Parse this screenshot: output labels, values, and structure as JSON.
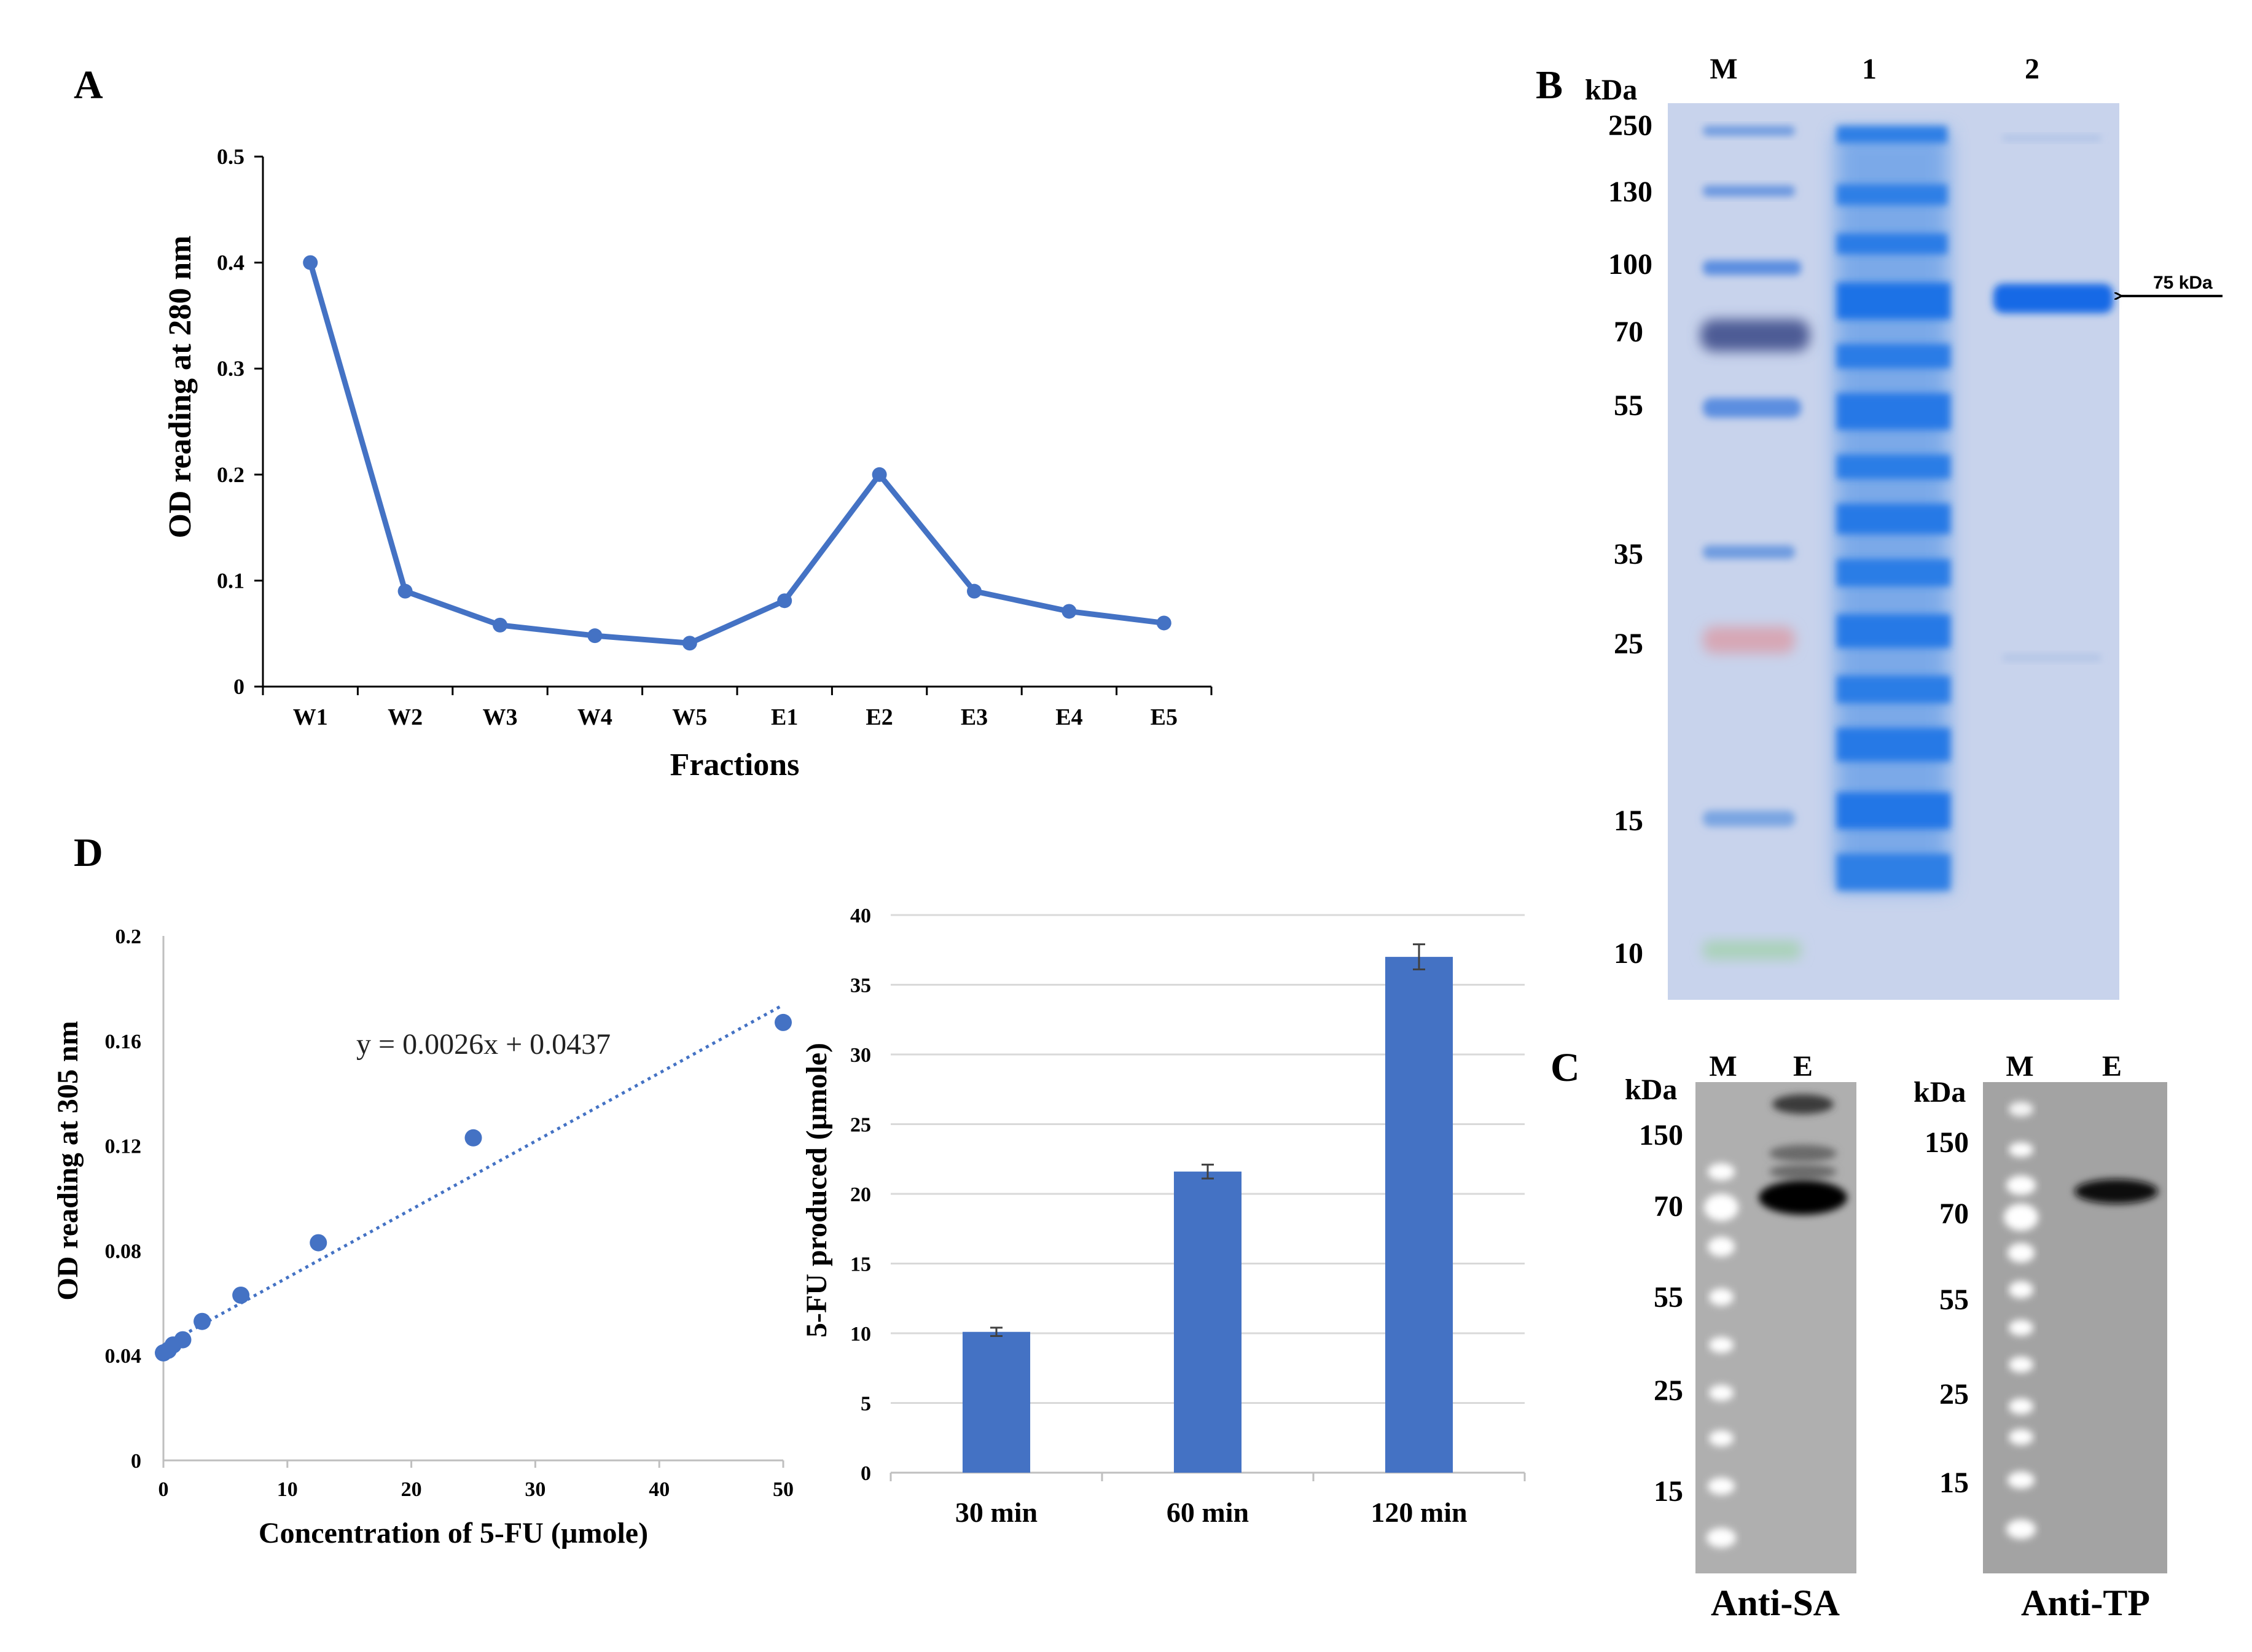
{
  "panels": {
    "A": "A",
    "B": "B",
    "C": "C",
    "D": "D"
  },
  "colors": {
    "series": "#4472C4",
    "gridline": "#D9D9D9",
    "axis": "#000000",
    "gel_bg": "#C9D3EA",
    "blot_bg": "#A8A8A8"
  },
  "chart_data": [
    {
      "id": "A",
      "type": "line",
      "xlabel": "Fractions",
      "ylabel": "OD reading at 280 nm",
      "categories": [
        "W1",
        "W2",
        "W3",
        "W4",
        "W5",
        "E1",
        "E2",
        "E3",
        "E4",
        "E5"
      ],
      "values": [
        0.4,
        0.09,
        0.058,
        0.048,
        0.041,
        0.081,
        0.2,
        0.09,
        0.071,
        0.06
      ],
      "ylim": [
        0,
        0.5
      ],
      "yticks": [
        0,
        0.1,
        0.2,
        0.3,
        0.4,
        0.5
      ],
      "ytick_labels": [
        "0",
        "0.1",
        "0.2",
        "0.3",
        "0.4",
        "0.5"
      ]
    },
    {
      "id": "D-standard",
      "type": "scatter",
      "xlabel": "Concentration of 5-FU (µmole)",
      "ylabel": "OD reading at 305 nm",
      "x": [
        0,
        0.39,
        0.78,
        1.56,
        3.125,
        6.25,
        12.5,
        25,
        50
      ],
      "y": [
        0.041,
        0.042,
        0.044,
        0.046,
        0.053,
        0.063,
        0.083,
        0.123,
        0.167
      ],
      "trendline": {
        "slope": 0.0026,
        "intercept": 0.0437,
        "equation": "y = 0.0026x + 0.0437"
      },
      "xlim": [
        0,
        50
      ],
      "ylim": [
        0,
        0.2
      ],
      "xticks": [
        0,
        10,
        20,
        30,
        40,
        50
      ],
      "xtick_labels": [
        "0",
        "10",
        "20",
        "30",
        "40",
        "50"
      ],
      "yticks": [
        0,
        0.04,
        0.08,
        0.12,
        0.16,
        0.2
      ],
      "ytick_labels": [
        "0",
        "0.04",
        "0.08",
        "0.12",
        "0.16",
        "0.2"
      ]
    },
    {
      "id": "D-bars",
      "type": "bar",
      "ylabel": "5-FU produced (µmole)",
      "categories": [
        "30 min",
        "60 min",
        "120 min"
      ],
      "values": [
        10.1,
        21.6,
        37.0
      ],
      "errors": [
        0.3,
        0.5,
        0.9
      ],
      "ylim": [
        0,
        40
      ],
      "yticks": [
        0,
        5,
        10,
        15,
        20,
        25,
        30,
        35,
        40
      ],
      "ytick_labels": [
        "0",
        "5",
        "10",
        "15",
        "20",
        "25",
        "30",
        "35",
        "40"
      ],
      "grid": true
    }
  ],
  "gel": {
    "unit": "kDa",
    "lanes": [
      "M",
      "1",
      "2"
    ],
    "markers": [
      "250",
      "130",
      "100",
      "70",
      "55",
      "35",
      "25",
      "15",
      "10"
    ],
    "arrow_label": "75 kDa"
  },
  "blots": [
    {
      "lanes": [
        "M",
        "E"
      ],
      "unit": "kDa",
      "markers": [
        "150",
        "70",
        "55",
        "25",
        "15"
      ],
      "name": "Anti-SA"
    },
    {
      "lanes": [
        "M",
        "E"
      ],
      "unit": "kDa",
      "markers": [
        "150",
        "70",
        "55",
        "25",
        "15"
      ],
      "name": "Anti-TP"
    }
  ]
}
